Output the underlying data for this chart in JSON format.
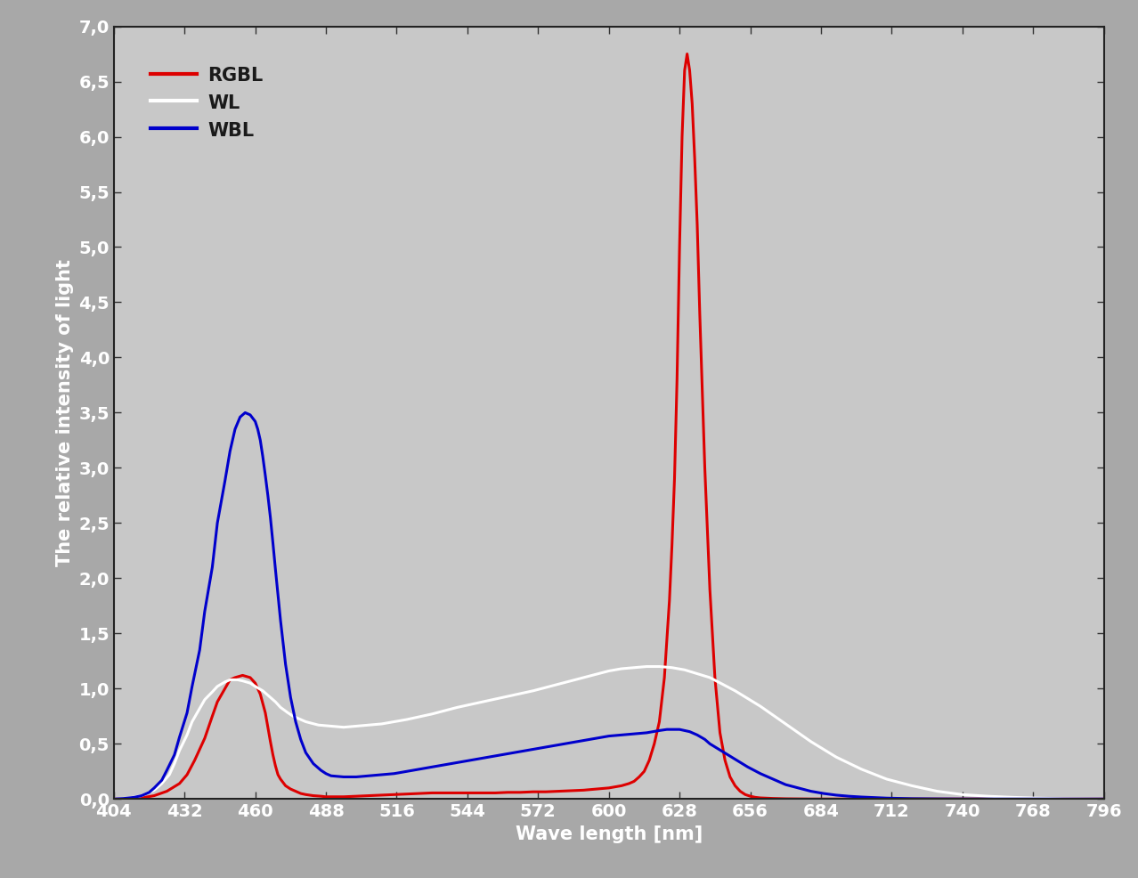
{
  "xlabel": "Wave length [nm]",
  "ylabel": "The relative intensity of light",
  "xlim": [
    404,
    796
  ],
  "ylim": [
    0.0,
    7.0
  ],
  "xticks": [
    404,
    432,
    460,
    488,
    516,
    544,
    572,
    600,
    628,
    656,
    684,
    712,
    740,
    768,
    796
  ],
  "yticks": [
    0.0,
    0.5,
    1.0,
    1.5,
    2.0,
    2.5,
    3.0,
    3.5,
    4.0,
    4.5,
    5.0,
    5.5,
    6.0,
    6.5,
    7.0
  ],
  "background_color": "#a8a8a8",
  "plot_bg_color": "#c8c8c8",
  "legend_labels": [
    "RGBL",
    "WL",
    "WBL"
  ],
  "legend_colors": [
    "#dd0000",
    "#ffffff",
    "#0000cc"
  ],
  "legend_text_color": "#1a1a1a",
  "tick_label_color": "#ffffff",
  "axis_label_color": "#ffffff",
  "line_width": 2.2,
  "RGBL_x": [
    404,
    410,
    415,
    420,
    425,
    430,
    433,
    436,
    440,
    443,
    445,
    448,
    450,
    452,
    455,
    458,
    460,
    462,
    464,
    465,
    466,
    467,
    468,
    469,
    470,
    472,
    474,
    476,
    478,
    480,
    483,
    486,
    488,
    490,
    495,
    500,
    505,
    510,
    515,
    520,
    525,
    530,
    535,
    540,
    545,
    550,
    555,
    560,
    565,
    570,
    575,
    580,
    585,
    590,
    595,
    600,
    605,
    608,
    610,
    612,
    614,
    616,
    618,
    620,
    622,
    624,
    625,
    626,
    627,
    628,
    629,
    630,
    631,
    632,
    633,
    634,
    635,
    636,
    638,
    640,
    642,
    644,
    646,
    648,
    650,
    652,
    654,
    656,
    658,
    660,
    665,
    670,
    675,
    680,
    685,
    690,
    700,
    710,
    720,
    730,
    740,
    760,
    796
  ],
  "RGBL_y": [
    0.0,
    0.005,
    0.01,
    0.03,
    0.07,
    0.14,
    0.22,
    0.35,
    0.55,
    0.75,
    0.88,
    1.0,
    1.08,
    1.1,
    1.12,
    1.1,
    1.05,
    0.95,
    0.78,
    0.65,
    0.52,
    0.4,
    0.3,
    0.22,
    0.18,
    0.12,
    0.09,
    0.07,
    0.05,
    0.04,
    0.03,
    0.025,
    0.02,
    0.02,
    0.02,
    0.025,
    0.03,
    0.035,
    0.04,
    0.045,
    0.05,
    0.055,
    0.055,
    0.055,
    0.055,
    0.055,
    0.055,
    0.06,
    0.06,
    0.065,
    0.065,
    0.07,
    0.075,
    0.08,
    0.09,
    0.1,
    0.12,
    0.14,
    0.16,
    0.2,
    0.25,
    0.35,
    0.5,
    0.7,
    1.1,
    1.8,
    2.3,
    2.9,
    3.8,
    5.0,
    6.0,
    6.6,
    6.75,
    6.6,
    6.3,
    5.8,
    5.2,
    4.4,
    3.0,
    1.9,
    1.1,
    0.6,
    0.35,
    0.2,
    0.12,
    0.07,
    0.04,
    0.025,
    0.015,
    0.01,
    0.005,
    0.002,
    0.001,
    0.0,
    0.0,
    0.0,
    0.0,
    0.0,
    0.0,
    0.0,
    0.0,
    0.0,
    0.0
  ],
  "WL_x": [
    404,
    410,
    415,
    420,
    423,
    426,
    428,
    430,
    433,
    435,
    438,
    440,
    443,
    445,
    448,
    450,
    453,
    455,
    458,
    460,
    463,
    465,
    468,
    470,
    473,
    475,
    478,
    480,
    485,
    490,
    495,
    500,
    505,
    510,
    515,
    520,
    530,
    540,
    550,
    560,
    570,
    580,
    590,
    595,
    600,
    605,
    610,
    615,
    620,
    625,
    630,
    640,
    650,
    660,
    670,
    680,
    690,
    700,
    710,
    720,
    730,
    740,
    750,
    760,
    770,
    780,
    796
  ],
  "WL_y": [
    0.0,
    0.01,
    0.03,
    0.08,
    0.14,
    0.22,
    0.32,
    0.44,
    0.58,
    0.7,
    0.82,
    0.9,
    0.97,
    1.02,
    1.06,
    1.08,
    1.08,
    1.07,
    1.05,
    1.02,
    0.98,
    0.94,
    0.88,
    0.83,
    0.78,
    0.75,
    0.72,
    0.7,
    0.67,
    0.66,
    0.65,
    0.66,
    0.67,
    0.68,
    0.7,
    0.72,
    0.77,
    0.83,
    0.88,
    0.93,
    0.98,
    1.04,
    1.1,
    1.13,
    1.16,
    1.18,
    1.19,
    1.2,
    1.2,
    1.19,
    1.17,
    1.1,
    0.98,
    0.84,
    0.68,
    0.52,
    0.38,
    0.27,
    0.18,
    0.12,
    0.07,
    0.04,
    0.025,
    0.015,
    0.008,
    0.003,
    0.0
  ],
  "WBL_x": [
    404,
    408,
    412,
    415,
    418,
    420,
    423,
    425,
    428,
    430,
    433,
    435,
    438,
    440,
    443,
    445,
    448,
    450,
    452,
    454,
    456,
    458,
    460,
    461,
    462,
    463,
    464,
    465,
    466,
    467,
    468,
    469,
    470,
    471,
    472,
    474,
    476,
    478,
    480,
    483,
    486,
    488,
    490,
    495,
    500,
    505,
    510,
    515,
    520,
    525,
    530,
    535,
    540,
    545,
    550,
    555,
    560,
    565,
    570,
    575,
    580,
    585,
    590,
    595,
    600,
    605,
    610,
    615,
    620,
    623,
    625,
    627,
    628,
    630,
    632,
    635,
    638,
    640,
    645,
    650,
    655,
    660,
    665,
    670,
    675,
    680,
    685,
    690,
    695,
    700,
    710,
    720,
    730,
    740,
    750,
    760,
    770,
    796
  ],
  "WBL_y": [
    0.0,
    0.005,
    0.015,
    0.03,
    0.06,
    0.1,
    0.17,
    0.26,
    0.4,
    0.56,
    0.78,
    1.02,
    1.35,
    1.7,
    2.1,
    2.5,
    2.88,
    3.15,
    3.35,
    3.46,
    3.5,
    3.48,
    3.42,
    3.35,
    3.25,
    3.1,
    2.93,
    2.75,
    2.55,
    2.32,
    2.08,
    1.85,
    1.62,
    1.42,
    1.22,
    0.92,
    0.7,
    0.54,
    0.42,
    0.32,
    0.26,
    0.23,
    0.21,
    0.2,
    0.2,
    0.21,
    0.22,
    0.23,
    0.25,
    0.27,
    0.29,
    0.31,
    0.33,
    0.35,
    0.37,
    0.39,
    0.41,
    0.43,
    0.45,
    0.47,
    0.49,
    0.51,
    0.53,
    0.55,
    0.57,
    0.58,
    0.59,
    0.6,
    0.62,
    0.63,
    0.63,
    0.63,
    0.63,
    0.62,
    0.61,
    0.58,
    0.54,
    0.5,
    0.43,
    0.36,
    0.29,
    0.23,
    0.18,
    0.13,
    0.1,
    0.07,
    0.05,
    0.035,
    0.025,
    0.018,
    0.008,
    0.003,
    0.001,
    0.0,
    0.0,
    0.0,
    0.0,
    0.0
  ]
}
